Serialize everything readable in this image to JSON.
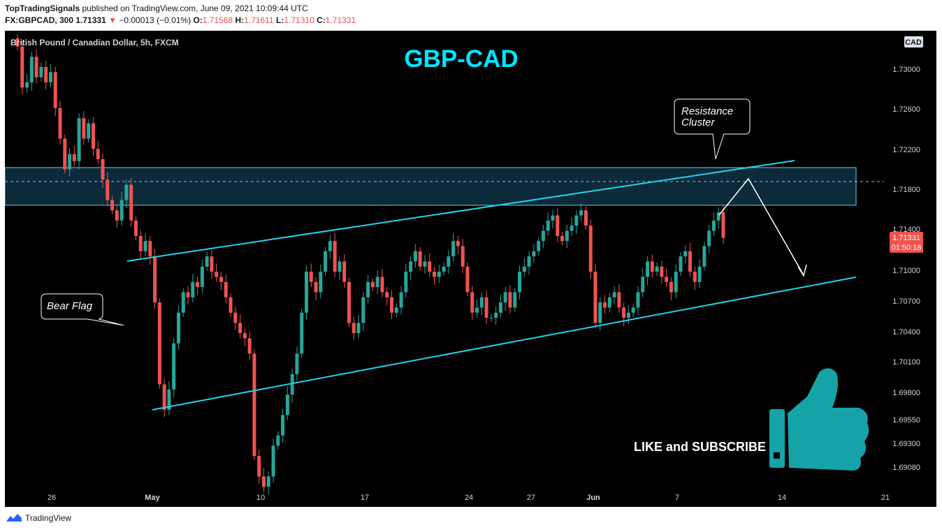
{
  "header": {
    "publisher": "TopTradingSignals",
    "published_text": "published on TradingView.com, June 09, 2021 10:09:44 UTC",
    "symbol": "FX:GBPCAD, 300",
    "last": "1.71331",
    "change_arrow": "▼",
    "change": "−0.00013 (−0.01%)",
    "open_label": "O:",
    "open": "1.71568",
    "high_label": "H:",
    "high": "1.71611",
    "low_label": "L:",
    "low": "1.71310",
    "close_label": "C:",
    "close": "1.71331"
  },
  "footer": {
    "brand": "TradingView",
    "logo_icon": "tradingview-logo-icon"
  },
  "chart": {
    "series_title": "British Pound / Canadian Dollar, 5h, FXCM",
    "headline": "GBP-CAD",
    "currency_badge": "CAD",
    "last_price_label": "1.71331",
    "countdown_label": "01:50:18",
    "cta_text": "LIKE and SUBSCRIBE",
    "cta_icon": "thumbs-up-icon",
    "callouts": {
      "resistance_line1": "Resistance",
      "resistance_line2": "Cluster",
      "bear_flag": "Bear Flag"
    },
    "colors": {
      "background": "#000000",
      "up": "#26a69a",
      "down": "#ef5350",
      "headline": "#00e5ff",
      "channel": "#22d3ee",
      "zone_fill": "#0c2a3a",
      "zone_border": "#5fd4e6",
      "thumb": "#15a3a8",
      "text": "#d1d4dc"
    }
  },
  "chart_data": {
    "type": "candlestick",
    "title": "British Pound / Canadian Dollar, 5h, FXCM",
    "x_ticks": [
      "26",
      "May",
      "10",
      "17",
      "24",
      "27",
      "Jun",
      "7",
      "14",
      "21"
    ],
    "y_ticks": [
      "1.73000",
      "1.72600",
      "1.72200",
      "1.71800",
      "1.71400",
      "1.71000",
      "1.70700",
      "1.70400",
      "1.70100",
      "1.69800",
      "1.69550",
      "1.69300",
      "1.69080"
    ],
    "ylim": [
      1.6888,
      1.733
    ],
    "last_price": 1.71331,
    "resistance_zone": [
      1.7164,
      1.7202
    ],
    "resistance_dashed_level": 1.719,
    "channel_upper": [
      [
        "Apr 30",
        1.7113
      ],
      [
        "Jun 14",
        1.7209
      ]
    ],
    "channel_lower": [
      [
        "May 1",
        1.6964
      ],
      [
        "Jun 21",
        1.7095
      ]
    ],
    "projection": [
      [
        1.7159,
        1.7193
      ],
      [
        1.7193,
        1.709
      ]
    ],
    "closes_approx": [
      1.732,
      1.728,
      1.7285,
      1.731,
      1.729,
      1.73,
      1.7285,
      1.7295,
      1.726,
      1.723,
      1.72,
      1.7215,
      1.7208,
      1.725,
      1.723,
      1.7245,
      1.722,
      1.721,
      1.719,
      1.717,
      1.716,
      1.715,
      1.717,
      1.7185,
      1.715,
      1.7135,
      1.712,
      1.713,
      1.7115,
      1.707,
      1.699,
      1.6965,
      1.6985,
      1.703,
      1.706,
      1.708,
      1.7075,
      1.709,
      1.7085,
      1.7105,
      1.7115,
      1.71,
      1.7095,
      1.709,
      1.7075,
      1.706,
      1.705,
      1.704,
      1.7035,
      1.702,
      1.692,
      1.69,
      1.689,
      1.69,
      1.693,
      1.694,
      1.696,
      1.698,
      1.7,
      1.702,
      1.706,
      1.71,
      1.709,
      1.708,
      1.71,
      1.712,
      1.713,
      1.71,
      1.711,
      1.709,
      1.705,
      1.704,
      1.705,
      1.7075,
      1.709,
      1.7085,
      1.7095,
      1.708,
      1.7075,
      1.706,
      1.7065,
      1.708,
      1.71,
      1.711,
      1.712,
      1.7105,
      1.711,
      1.71,
      1.7095,
      1.71,
      1.7105,
      1.7115,
      1.713,
      1.7125,
      1.7105,
      1.708,
      1.706,
      1.7065,
      1.7075,
      1.7055,
      1.7055,
      1.706,
      1.707,
      1.708,
      1.7065,
      1.708,
      1.71,
      1.7105,
      1.7115,
      1.712,
      1.713,
      1.714,
      1.715,
      1.7155,
      1.7135,
      1.713,
      1.714,
      1.7145,
      1.7155,
      1.716,
      1.7145,
      1.71,
      1.705,
      1.707,
      1.7065,
      1.7075,
      1.708,
      1.7065,
      1.7055,
      1.706,
      1.7065,
      1.708,
      1.7095,
      1.711,
      1.71,
      1.7105,
      1.7095,
      1.709,
      1.708,
      1.71,
      1.7115,
      1.712,
      1.71,
      1.709,
      1.7105,
      1.7125,
      1.714,
      1.715,
      1.7158,
      1.7133
    ]
  }
}
